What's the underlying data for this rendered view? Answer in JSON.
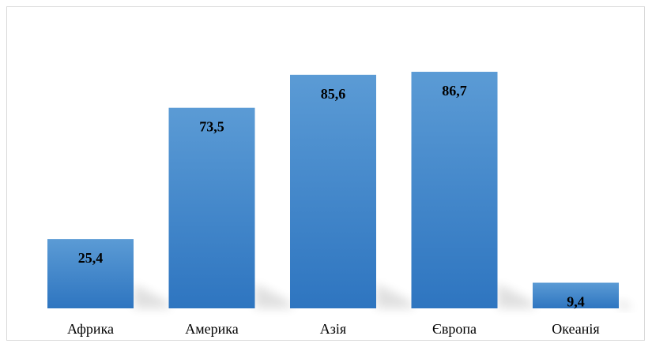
{
  "chart_data": {
    "type": "bar",
    "categories": [
      "Африка",
      "Америка",
      "Азія",
      "Європа",
      "Океанія"
    ],
    "values": [
      25.4,
      73.5,
      85.6,
      86.7,
      9.4
    ],
    "value_labels": [
      "25,4",
      "73,5",
      "85,6",
      "86,7",
      "9,4"
    ],
    "title": "",
    "xlabel": "",
    "ylabel": "",
    "ylim": [
      0,
      100
    ],
    "grid": false,
    "legend": "none",
    "bar_color_top": "#5b9bd5",
    "bar_color_bottom": "#2e75c0"
  }
}
